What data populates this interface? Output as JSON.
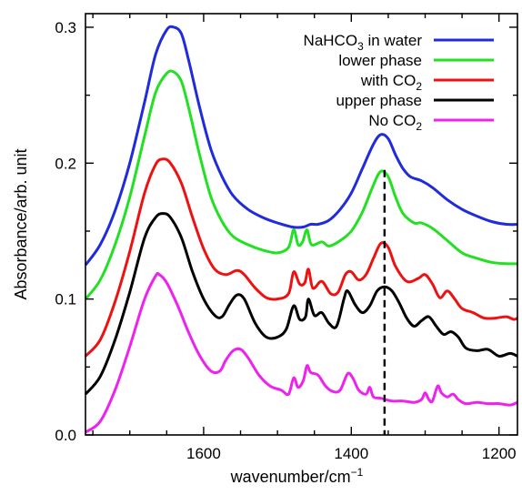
{
  "chart_data": {
    "type": "line",
    "xlabel": "wavenumber/cm",
    "xlabel_sup": "−1",
    "ylabel": "Absorbance/arb. unit",
    "xlim": [
      1760,
      1175
    ],
    "ylim": [
      0.0,
      0.31
    ],
    "x_reversed": true,
    "xticks": [
      1600,
      1400,
      1200
    ],
    "yticks": [
      0.0,
      0.1,
      0.2,
      0.3
    ],
    "ytick_labels": [
      "0.0",
      "0.1",
      "0.2",
      "0.3"
    ],
    "grid": false,
    "legend_position": "top-right",
    "legend": [
      {
        "text": "NaHCO",
        "sub": "3",
        "tail": " in water",
        "color": "#1f2bdc"
      },
      {
        "text": "lower phase",
        "sub": "",
        "tail": "",
        "color": "#22e022"
      },
      {
        "text": "with CO",
        "sub": "2",
        "tail": "",
        "color": "#ee1111"
      },
      {
        "text": "upper phase",
        "sub": "",
        "tail": "",
        "color": "#000000"
      },
      {
        "text": "No CO",
        "sub": "2",
        "tail": "",
        "color": "#ee22ee"
      }
    ],
    "reference_line": {
      "x": 1355,
      "y_from": 0.0,
      "y_to": 0.195,
      "style": "dashed",
      "color": "#000000"
    },
    "series": [
      {
        "color": "#1f2bdc",
        "points": [
          [
            1760,
            0.125
          ],
          [
            1740,
            0.14
          ],
          [
            1720,
            0.165
          ],
          [
            1700,
            0.2
          ],
          [
            1680,
            0.245
          ],
          [
            1665,
            0.28
          ],
          [
            1650,
            0.298
          ],
          [
            1640,
            0.3
          ],
          [
            1630,
            0.295
          ],
          [
            1620,
            0.275
          ],
          [
            1605,
            0.24
          ],
          [
            1590,
            0.21
          ],
          [
            1575,
            0.19
          ],
          [
            1560,
            0.176
          ],
          [
            1540,
            0.166
          ],
          [
            1520,
            0.16
          ],
          [
            1500,
            0.156
          ],
          [
            1480,
            0.153
          ],
          [
            1465,
            0.153
          ],
          [
            1455,
            0.155
          ],
          [
            1445,
            0.155
          ],
          [
            1430,
            0.158
          ],
          [
            1415,
            0.166
          ],
          [
            1400,
            0.178
          ],
          [
            1385,
            0.196
          ],
          [
            1370,
            0.214
          ],
          [
            1360,
            0.221
          ],
          [
            1350,
            0.218
          ],
          [
            1340,
            0.206
          ],
          [
            1330,
            0.196
          ],
          [
            1320,
            0.19
          ],
          [
            1305,
            0.187
          ],
          [
            1290,
            0.182
          ],
          [
            1270,
            0.173
          ],
          [
            1250,
            0.166
          ],
          [
            1230,
            0.161
          ],
          [
            1210,
            0.157
          ],
          [
            1190,
            0.155
          ],
          [
            1175,
            0.155
          ]
        ]
      },
      {
        "color": "#22e022",
        "points": [
          [
            1760,
            0.1
          ],
          [
            1740,
            0.114
          ],
          [
            1720,
            0.14
          ],
          [
            1700,
            0.175
          ],
          [
            1680,
            0.22
          ],
          [
            1665,
            0.252
          ],
          [
            1650,
            0.266
          ],
          [
            1640,
            0.267
          ],
          [
            1630,
            0.26
          ],
          [
            1620,
            0.24
          ],
          [
            1605,
            0.205
          ],
          [
            1590,
            0.175
          ],
          [
            1575,
            0.157
          ],
          [
            1560,
            0.146
          ],
          [
            1540,
            0.14
          ],
          [
            1520,
            0.136
          ],
          [
            1500,
            0.134
          ],
          [
            1485,
            0.138
          ],
          [
            1478,
            0.151
          ],
          [
            1472,
            0.14
          ],
          [
            1466,
            0.142
          ],
          [
            1460,
            0.151
          ],
          [
            1454,
            0.14
          ],
          [
            1440,
            0.142
          ],
          [
            1430,
            0.139
          ],
          [
            1415,
            0.143
          ],
          [
            1400,
            0.15
          ],
          [
            1385,
            0.164
          ],
          [
            1370,
            0.184
          ],
          [
            1360,
            0.194
          ],
          [
            1350,
            0.19
          ],
          [
            1340,
            0.175
          ],
          [
            1330,
            0.163
          ],
          [
            1315,
            0.156
          ],
          [
            1305,
            0.156
          ],
          [
            1290,
            0.152
          ],
          [
            1270,
            0.143
          ],
          [
            1250,
            0.134
          ],
          [
            1230,
            0.13
          ],
          [
            1210,
            0.127
          ],
          [
            1190,
            0.126
          ],
          [
            1175,
            0.126
          ]
        ]
      },
      {
        "color": "#ee1111",
        "points": [
          [
            1760,
            0.058
          ],
          [
            1740,
            0.07
          ],
          [
            1720,
            0.098
          ],
          [
            1700,
            0.135
          ],
          [
            1680,
            0.178
          ],
          [
            1665,
            0.199
          ],
          [
            1655,
            0.203
          ],
          [
            1645,
            0.2
          ],
          [
            1630,
            0.185
          ],
          [
            1615,
            0.16
          ],
          [
            1600,
            0.137
          ],
          [
            1585,
            0.122
          ],
          [
            1570,
            0.118
          ],
          [
            1555,
            0.121
          ],
          [
            1545,
            0.118
          ],
          [
            1530,
            0.108
          ],
          [
            1515,
            0.101
          ],
          [
            1500,
            0.1
          ],
          [
            1485,
            0.104
          ],
          [
            1478,
            0.12
          ],
          [
            1470,
            0.111
          ],
          [
            1463,
            0.112
          ],
          [
            1458,
            0.122
          ],
          [
            1452,
            0.108
          ],
          [
            1440,
            0.113
          ],
          [
            1428,
            0.104
          ],
          [
            1418,
            0.105
          ],
          [
            1408,
            0.118
          ],
          [
            1400,
            0.12
          ],
          [
            1390,
            0.114
          ],
          [
            1380,
            0.118
          ],
          [
            1370,
            0.13
          ],
          [
            1360,
            0.141
          ],
          [
            1350,
            0.138
          ],
          [
            1340,
            0.124
          ],
          [
            1325,
            0.113
          ],
          [
            1310,
            0.115
          ],
          [
            1300,
            0.118
          ],
          [
            1290,
            0.111
          ],
          [
            1280,
            0.101
          ],
          [
            1270,
            0.106
          ],
          [
            1260,
            0.1
          ],
          [
            1250,
            0.093
          ],
          [
            1235,
            0.09
          ],
          [
            1220,
            0.086
          ],
          [
            1205,
            0.086
          ],
          [
            1190,
            0.087
          ],
          [
            1180,
            0.085
          ],
          [
            1175,
            0.086
          ]
        ]
      },
      {
        "color": "#000000",
        "points": [
          [
            1760,
            0.03
          ],
          [
            1740,
            0.043
          ],
          [
            1720,
            0.07
          ],
          [
            1700,
            0.105
          ],
          [
            1680,
            0.145
          ],
          [
            1665,
            0.16
          ],
          [
            1655,
            0.163
          ],
          [
            1645,
            0.16
          ],
          [
            1630,
            0.145
          ],
          [
            1615,
            0.12
          ],
          [
            1600,
            0.1
          ],
          [
            1585,
            0.088
          ],
          [
            1575,
            0.087
          ],
          [
            1565,
            0.096
          ],
          [
            1555,
            0.103
          ],
          [
            1545,
            0.1
          ],
          [
            1530,
            0.082
          ],
          [
            1515,
            0.072
          ],
          [
            1500,
            0.072
          ],
          [
            1488,
            0.078
          ],
          [
            1478,
            0.095
          ],
          [
            1470,
            0.085
          ],
          [
            1462,
            0.087
          ],
          [
            1458,
            0.1
          ],
          [
            1450,
            0.088
          ],
          [
            1440,
            0.09
          ],
          [
            1430,
            0.082
          ],
          [
            1420,
            0.08
          ],
          [
            1410,
            0.1
          ],
          [
            1405,
            0.106
          ],
          [
            1395,
            0.096
          ],
          [
            1385,
            0.09
          ],
          [
            1375,
            0.095
          ],
          [
            1365,
            0.106
          ],
          [
            1355,
            0.109
          ],
          [
            1345,
            0.106
          ],
          [
            1335,
            0.097
          ],
          [
            1325,
            0.086
          ],
          [
            1315,
            0.08
          ],
          [
            1305,
            0.084
          ],
          [
            1295,
            0.087
          ],
          [
            1285,
            0.08
          ],
          [
            1275,
            0.074
          ],
          [
            1265,
            0.076
          ],
          [
            1255,
            0.072
          ],
          [
            1245,
            0.064
          ],
          [
            1230,
            0.062
          ],
          [
            1215,
            0.063
          ],
          [
            1200,
            0.058
          ],
          [
            1185,
            0.06
          ],
          [
            1175,
            0.058
          ]
        ]
      },
      {
        "color": "#ee22ee",
        "points": [
          [
            1760,
            0.002
          ],
          [
            1740,
            0.01
          ],
          [
            1720,
            0.033
          ],
          [
            1700,
            0.065
          ],
          [
            1680,
            0.1
          ],
          [
            1665,
            0.117
          ],
          [
            1660,
            0.118
          ],
          [
            1650,
            0.112
          ],
          [
            1635,
            0.095
          ],
          [
            1620,
            0.075
          ],
          [
            1605,
            0.058
          ],
          [
            1590,
            0.047
          ],
          [
            1578,
            0.047
          ],
          [
            1570,
            0.055
          ],
          [
            1560,
            0.062
          ],
          [
            1550,
            0.063
          ],
          [
            1540,
            0.057
          ],
          [
            1525,
            0.044
          ],
          [
            1510,
            0.036
          ],
          [
            1495,
            0.033
          ],
          [
            1485,
            0.03
          ],
          [
            1478,
            0.042
          ],
          [
            1472,
            0.035
          ],
          [
            1465,
            0.04
          ],
          [
            1460,
            0.051
          ],
          [
            1455,
            0.046
          ],
          [
            1445,
            0.044
          ],
          [
            1435,
            0.036
          ],
          [
            1425,
            0.032
          ],
          [
            1415,
            0.033
          ],
          [
            1405,
            0.045
          ],
          [
            1398,
            0.042
          ],
          [
            1390,
            0.033
          ],
          [
            1380,
            0.03
          ],
          [
            1375,
            0.035
          ],
          [
            1370,
            0.028
          ],
          [
            1360,
            0.027
          ],
          [
            1345,
            0.025
          ],
          [
            1330,
            0.025
          ],
          [
            1315,
            0.024
          ],
          [
            1305,
            0.026
          ],
          [
            1300,
            0.031
          ],
          [
            1295,
            0.026
          ],
          [
            1290,
            0.025
          ],
          [
            1283,
            0.036
          ],
          [
            1278,
            0.031
          ],
          [
            1270,
            0.028
          ],
          [
            1262,
            0.03
          ],
          [
            1255,
            0.026
          ],
          [
            1245,
            0.023
          ],
          [
            1230,
            0.024
          ],
          [
            1215,
            0.023
          ],
          [
            1200,
            0.023
          ],
          [
            1185,
            0.022
          ],
          [
            1175,
            0.024
          ]
        ]
      }
    ]
  }
}
